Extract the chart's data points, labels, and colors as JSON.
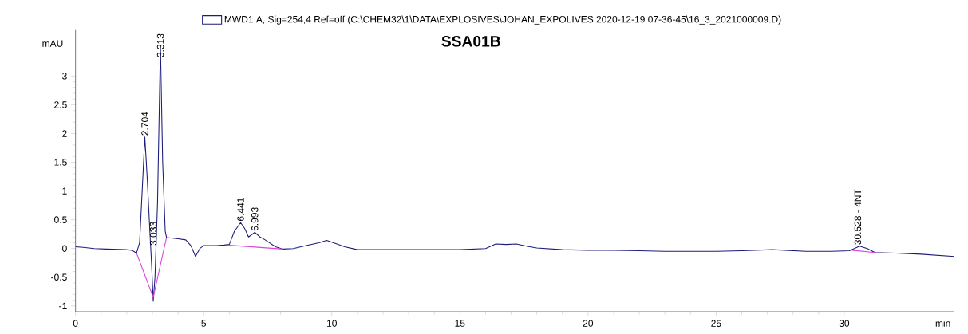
{
  "chart_data": {
    "type": "line",
    "title": "SSA01B",
    "xlabel": "min",
    "ylabel": "mAU",
    "legend": "top",
    "xlim": [
      0,
      34.3
    ],
    "ylim": [
      -1.1,
      3.8
    ],
    "xticks": [
      0,
      5,
      10,
      15,
      20,
      25,
      30
    ],
    "yticks": [
      -1,
      -0.5,
      0,
      0.5,
      1,
      1.5,
      2,
      2.5,
      3
    ],
    "series": [
      {
        "name": "MWD1 A, Sig=254,4 Ref=off (C:\\CHEM32\\1\\DATA\\EXPLOSIVES\\JOHAN_EXPOLIVES 2020-12-19 07-36-45\\16_3_2021000009.D)",
        "color": "#1c1c7a",
        "x": [
          0,
          0.3,
          0.73,
          1.2,
          1.95,
          2.2,
          2.38,
          2.5,
          2.6,
          2.704,
          2.8,
          2.9,
          2.97,
          3.033,
          3.1,
          3.2,
          3.313,
          3.4,
          3.5,
          3.55,
          3.8,
          4.0,
          4.3,
          4.5,
          4.68,
          4.85,
          5.0,
          5.5,
          5.8,
          6.0,
          6.2,
          6.441,
          6.6,
          6.75,
          6.993,
          7.2,
          7.4,
          7.8,
          8.1,
          8.5,
          9.0,
          9.5,
          9.8,
          10.2,
          10.5,
          11.0,
          12,
          13,
          14,
          15,
          16.0,
          16.4,
          16.8,
          17.2,
          17.6,
          18.0,
          19,
          20,
          21,
          22,
          23,
          24,
          25,
          26,
          27.2,
          28.5,
          29.5,
          30.2,
          30.4,
          30.6,
          30.9,
          31.2,
          32,
          33,
          34.3
        ],
        "values": [
          0.03,
          0.02,
          0.0,
          -0.01,
          -0.02,
          -0.03,
          -0.08,
          0.1,
          1.0,
          1.94,
          1.2,
          0.3,
          -0.3,
          -0.92,
          -0.5,
          0.8,
          3.54,
          1.5,
          0.3,
          0.19,
          0.18,
          0.17,
          0.15,
          0.05,
          -0.14,
          0.0,
          0.05,
          0.05,
          0.06,
          0.07,
          0.3,
          0.45,
          0.35,
          0.2,
          0.28,
          0.2,
          0.15,
          0.03,
          -0.01,
          0.0,
          0.05,
          0.1,
          0.14,
          0.08,
          0.03,
          -0.02,
          -0.02,
          -0.02,
          -0.02,
          -0.02,
          0.0,
          0.08,
          0.07,
          0.08,
          0.04,
          0.01,
          -0.02,
          -0.03,
          -0.03,
          -0.04,
          -0.05,
          -0.05,
          -0.05,
          -0.04,
          -0.02,
          -0.05,
          -0.05,
          -0.04,
          0.0,
          0.04,
          0.0,
          -0.07,
          -0.08,
          -0.1,
          -0.14
        ]
      },
      {
        "color": "#dd44dd",
        "x": [
          2.38,
          3.033,
          3.55
        ],
        "values": [
          -0.08,
          -0.85,
          0.19
        ]
      },
      {
        "color": "#dd44dd",
        "x": [
          5.9,
          8.1
        ],
        "values": [
          0.06,
          -0.01
        ]
      },
      {
        "color": "#dd44dd",
        "x": [
          30.3,
          31.2
        ],
        "values": [
          -0.03,
          -0.07
        ]
      }
    ],
    "annotations": [
      {
        "text": "2.704",
        "x": 2.704,
        "y": 1.94
      },
      {
        "text": "3.033",
        "x": 3.033,
        "y": 0.03
      },
      {
        "text": "3.313",
        "x": 3.313,
        "y": 3.3
      },
      {
        "text": "6.441",
        "x": 6.441,
        "y": 0.45
      },
      {
        "text": "6.993",
        "x": 6.993,
        "y": 0.28
      },
      {
        "text": "30.528 - 4NT",
        "x": 30.528,
        "y": 0.04
      }
    ]
  }
}
